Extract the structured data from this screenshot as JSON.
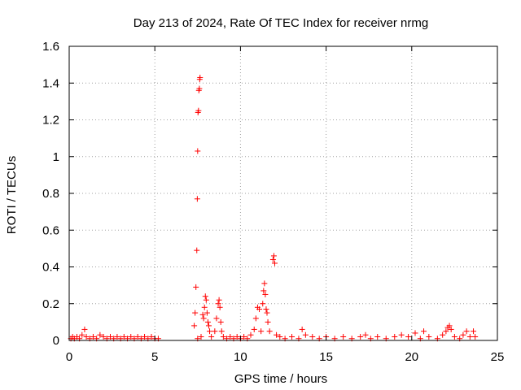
{
  "chart_data": {
    "type": "scatter",
    "title": "Day 213 of 2024, Rate Of TEC Index for receiver nrmg",
    "xlabel": "GPS time / hours",
    "ylabel": "ROTI / TECUs",
    "xlim": [
      0,
      25
    ],
    "ylim": [
      0,
      1.6
    ],
    "x_ticks": [
      0,
      5,
      10,
      15,
      20,
      25
    ],
    "x_tick_labels": [
      "0",
      "5",
      "10",
      "15",
      "20",
      "25"
    ],
    "y_ticks": [
      0,
      0.2,
      0.4,
      0.6,
      0.8,
      1,
      1.2,
      1.4,
      1.6
    ],
    "y_tick_labels": [
      "0",
      "0.2",
      "0.4",
      "0.6",
      "0.8",
      "1",
      "1.2",
      "1.4",
      "1.6"
    ],
    "grid": true,
    "marker": "plus",
    "marker_color": "#ff0000",
    "series": [
      {
        "points": [
          [
            0.1,
            0.01
          ],
          [
            0.2,
            0.02
          ],
          [
            0.3,
            0.01
          ],
          [
            0.45,
            0.02
          ],
          [
            0.6,
            0.01
          ],
          [
            0.75,
            0.03
          ],
          [
            0.9,
            0.06
          ],
          [
            1.0,
            0.02
          ],
          [
            1.2,
            0.01
          ],
          [
            1.4,
            0.02
          ],
          [
            1.6,
            0.01
          ],
          [
            1.8,
            0.03
          ],
          [
            2.0,
            0.02
          ],
          [
            2.2,
            0.01
          ],
          [
            2.4,
            0.02
          ],
          [
            2.6,
            0.01
          ],
          [
            2.8,
            0.02
          ],
          [
            3.0,
            0.01
          ],
          [
            3.2,
            0.02
          ],
          [
            3.4,
            0.01
          ],
          [
            3.6,
            0.02
          ],
          [
            3.8,
            0.01
          ],
          [
            4.0,
            0.02
          ],
          [
            4.2,
            0.01
          ],
          [
            4.4,
            0.02
          ],
          [
            4.6,
            0.01
          ],
          [
            4.8,
            0.02
          ],
          [
            5.0,
            0.01
          ],
          [
            5.2,
            0.01
          ],
          [
            7.3,
            0.08
          ],
          [
            7.35,
            0.15
          ],
          [
            7.4,
            0.29
          ],
          [
            7.45,
            0.49
          ],
          [
            7.48,
            0.77
          ],
          [
            7.5,
            1.03
          ],
          [
            7.52,
            1.24
          ],
          [
            7.55,
            1.25
          ],
          [
            7.57,
            1.36
          ],
          [
            7.6,
            1.37
          ],
          [
            7.62,
            1.42
          ],
          [
            7.64,
            1.43
          ],
          [
            7.5,
            0.01
          ],
          [
            7.7,
            0.02
          ],
          [
            7.8,
            0.14
          ],
          [
            7.85,
            0.12
          ],
          [
            7.9,
            0.18
          ],
          [
            7.95,
            0.24
          ],
          [
            8.0,
            0.22
          ],
          [
            8.05,
            0.15
          ],
          [
            8.1,
            0.1
          ],
          [
            8.15,
            0.08
          ],
          [
            8.2,
            0.05
          ],
          [
            8.3,
            0.02
          ],
          [
            8.5,
            0.05
          ],
          [
            8.6,
            0.12
          ],
          [
            8.7,
            0.2
          ],
          [
            8.75,
            0.22
          ],
          [
            8.8,
            0.18
          ],
          [
            8.85,
            0.1
          ],
          [
            8.9,
            0.05
          ],
          [
            9.0,
            0.02
          ],
          [
            9.2,
            0.01
          ],
          [
            9.4,
            0.02
          ],
          [
            9.6,
            0.01
          ],
          [
            9.8,
            0.02
          ],
          [
            10.0,
            0.01
          ],
          [
            10.2,
            0.02
          ],
          [
            10.4,
            0.01
          ],
          [
            10.6,
            0.03
          ],
          [
            10.8,
            0.06
          ],
          [
            10.9,
            0.12
          ],
          [
            11.0,
            0.18
          ],
          [
            11.1,
            0.17
          ],
          [
            11.2,
            0.05
          ],
          [
            11.3,
            0.2
          ],
          [
            11.35,
            0.27
          ],
          [
            11.4,
            0.31
          ],
          [
            11.45,
            0.25
          ],
          [
            11.5,
            0.17
          ],
          [
            11.55,
            0.15
          ],
          [
            11.6,
            0.1
          ],
          [
            11.7,
            0.05
          ],
          [
            11.9,
            0.44
          ],
          [
            11.95,
            0.46
          ],
          [
            12.0,
            0.42
          ],
          [
            12.1,
            0.03
          ],
          [
            12.3,
            0.02
          ],
          [
            12.6,
            0.01
          ],
          [
            13.0,
            0.02
          ],
          [
            13.4,
            0.01
          ],
          [
            13.6,
            0.06
          ],
          [
            13.8,
            0.03
          ],
          [
            14.2,
            0.02
          ],
          [
            14.6,
            0.01
          ],
          [
            15.0,
            0.02
          ],
          [
            15.5,
            0.01
          ],
          [
            16.0,
            0.02
          ],
          [
            16.5,
            0.01
          ],
          [
            17.0,
            0.02
          ],
          [
            17.3,
            0.03
          ],
          [
            17.6,
            0.01
          ],
          [
            18.0,
            0.02
          ],
          [
            18.5,
            0.01
          ],
          [
            19.0,
            0.02
          ],
          [
            19.4,
            0.03
          ],
          [
            19.8,
            0.02
          ],
          [
            20.2,
            0.04
          ],
          [
            20.5,
            0.01
          ],
          [
            20.7,
            0.05
          ],
          [
            21.0,
            0.02
          ],
          [
            21.5,
            0.01
          ],
          [
            21.8,
            0.03
          ],
          [
            22.0,
            0.05
          ],
          [
            22.1,
            0.07
          ],
          [
            22.2,
            0.08
          ],
          [
            22.3,
            0.06
          ],
          [
            22.5,
            0.02
          ],
          [
            22.8,
            0.01
          ],
          [
            23.0,
            0.03
          ],
          [
            23.2,
            0.05
          ],
          [
            23.4,
            0.02
          ],
          [
            23.6,
            0.05
          ],
          [
            23.7,
            0.02
          ]
        ]
      }
    ]
  }
}
